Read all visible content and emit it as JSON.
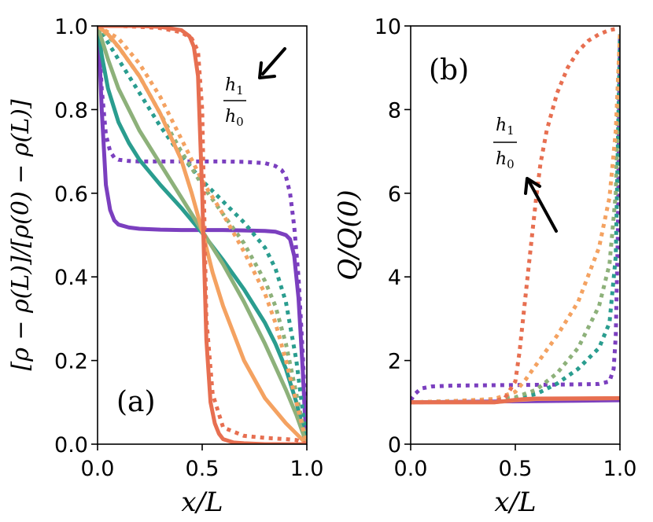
{
  "chart_data": [
    {
      "id": "a",
      "type": "line",
      "panel_label": "(a)",
      "xlabel": "x/L",
      "ylabel": "[ρ − ρ(L)]/[ρ(0) − ρ(L)]",
      "xlim": [
        0,
        1
      ],
      "ylim": [
        0,
        1
      ],
      "xticks": [
        "0.0",
        "0.5",
        "1.0"
      ],
      "yticks": [
        "0.0",
        "0.2",
        "0.4",
        "0.6",
        "0.8",
        "1.0"
      ],
      "annotation": {
        "numerator": "h",
        "numerator_sub": "1",
        "denominator": "h",
        "denominator_sub": "0",
        "arrow_direction": "down-left"
      },
      "series": [
        {
          "name": "purple solid",
          "style": "solid",
          "color": "#7b3fbf",
          "x": [
            0,
            0.01,
            0.02,
            0.04,
            0.06,
            0.08,
            0.1,
            0.15,
            0.2,
            0.3,
            0.4,
            0.5,
            0.6,
            0.7,
            0.8,
            0.85,
            0.9,
            0.92,
            0.94,
            0.96,
            0.98,
            0.99,
            1.0
          ],
          "y": [
            1.0,
            0.92,
            0.8,
            0.62,
            0.56,
            0.535,
            0.525,
            0.518,
            0.515,
            0.513,
            0.512,
            0.512,
            0.512,
            0.511,
            0.51,
            0.508,
            0.5,
            0.49,
            0.45,
            0.35,
            0.18,
            0.08,
            0.0
          ]
        },
        {
          "name": "purple dotted",
          "style": "dotted",
          "color": "#7b3fbf",
          "x": [
            0,
            0.01,
            0.02,
            0.04,
            0.06,
            0.08,
            0.1,
            0.15,
            0.2,
            0.3,
            0.4,
            0.5,
            0.6,
            0.7,
            0.8,
            0.85,
            0.88,
            0.9,
            0.92,
            0.94,
            0.96,
            0.98,
            1.0
          ],
          "y": [
            1.0,
            0.93,
            0.85,
            0.74,
            0.7,
            0.685,
            0.68,
            0.677,
            0.676,
            0.676,
            0.676,
            0.676,
            0.676,
            0.675,
            0.672,
            0.665,
            0.655,
            0.64,
            0.6,
            0.52,
            0.4,
            0.22,
            0.0
          ]
        },
        {
          "name": "teal solid",
          "style": "solid",
          "color": "#2a9d8f",
          "x": [
            0,
            0.02,
            0.05,
            0.1,
            0.15,
            0.2,
            0.3,
            0.4,
            0.5,
            0.6,
            0.7,
            0.8,
            0.85,
            0.9,
            0.95,
            0.98,
            1.0
          ],
          "y": [
            1.0,
            0.93,
            0.85,
            0.77,
            0.72,
            0.68,
            0.62,
            0.565,
            0.505,
            0.44,
            0.37,
            0.29,
            0.24,
            0.18,
            0.1,
            0.04,
            0.0
          ]
        },
        {
          "name": "teal dotted",
          "style": "dotted",
          "color": "#2a9d8f",
          "x": [
            0,
            0.05,
            0.1,
            0.2,
            0.3,
            0.4,
            0.5,
            0.6,
            0.7,
            0.8,
            0.85,
            0.9,
            0.95,
            0.98,
            1.0
          ],
          "y": [
            1.0,
            0.96,
            0.92,
            0.84,
            0.76,
            0.69,
            0.63,
            0.58,
            0.53,
            0.47,
            0.42,
            0.34,
            0.2,
            0.08,
            0.0
          ]
        },
        {
          "name": "green solid",
          "style": "solid",
          "color": "#8db17a",
          "x": [
            0,
            0.05,
            0.1,
            0.2,
            0.3,
            0.4,
            0.5,
            0.6,
            0.7,
            0.8,
            0.9,
            0.95,
            1.0
          ],
          "y": [
            1.0,
            0.92,
            0.85,
            0.75,
            0.67,
            0.59,
            0.51,
            0.43,
            0.34,
            0.24,
            0.13,
            0.07,
            0.0
          ]
        },
        {
          "name": "green dotted",
          "style": "dotted",
          "color": "#8db17a",
          "x": [
            0,
            0.1,
            0.2,
            0.3,
            0.4,
            0.5,
            0.6,
            0.7,
            0.8,
            0.85,
            0.9,
            0.95,
            1.0
          ],
          "y": [
            1.0,
            0.95,
            0.88,
            0.79,
            0.7,
            0.62,
            0.55,
            0.48,
            0.39,
            0.33,
            0.24,
            0.12,
            0.0
          ]
        },
        {
          "name": "orange solid",
          "style": "solid",
          "color": "#f4a261",
          "x": [
            0,
            0.05,
            0.1,
            0.2,
            0.3,
            0.4,
            0.45,
            0.5,
            0.55,
            0.6,
            0.7,
            0.8,
            0.9,
            1.0
          ],
          "y": [
            1.0,
            0.98,
            0.95,
            0.88,
            0.79,
            0.68,
            0.6,
            0.51,
            0.41,
            0.33,
            0.2,
            0.11,
            0.05,
            0.0
          ]
        },
        {
          "name": "orange dotted",
          "style": "dotted",
          "color": "#f4a261",
          "x": [
            0,
            0.1,
            0.2,
            0.3,
            0.4,
            0.5,
            0.6,
            0.7,
            0.8,
            0.85,
            0.9,
            0.95,
            1.0
          ],
          "y": [
            1.0,
            0.97,
            0.91,
            0.83,
            0.73,
            0.63,
            0.55,
            0.46,
            0.36,
            0.29,
            0.2,
            0.1,
            0.0
          ]
        },
        {
          "name": "red solid",
          "style": "solid",
          "color": "#e76f51",
          "x": [
            0,
            0.1,
            0.2,
            0.3,
            0.4,
            0.44,
            0.46,
            0.48,
            0.5,
            0.52,
            0.54,
            0.56,
            0.58,
            0.6,
            0.65,
            0.7,
            0.8,
            1.0
          ],
          "y": [
            1.0,
            1.0,
            1.0,
            0.998,
            0.99,
            0.975,
            0.95,
            0.88,
            0.6,
            0.25,
            0.1,
            0.05,
            0.025,
            0.012,
            0.004,
            0.002,
            0.0,
            0.0
          ]
        },
        {
          "name": "red dotted",
          "style": "dotted",
          "color": "#e76f51",
          "x": [
            0,
            0.1,
            0.2,
            0.3,
            0.4,
            0.45,
            0.48,
            0.5,
            0.52,
            0.55,
            0.6,
            0.7,
            0.8,
            0.9,
            0.95,
            1.0
          ],
          "y": [
            1.0,
            1.0,
            0.998,
            0.995,
            0.985,
            0.97,
            0.94,
            0.8,
            0.3,
            0.12,
            0.04,
            0.02,
            0.015,
            0.012,
            0.01,
            0.0
          ]
        }
      ]
    },
    {
      "id": "b",
      "type": "line",
      "panel_label": "(b)",
      "xlabel": "x/L",
      "ylabel": "Q/Q(0)",
      "xlim": [
        0,
        1
      ],
      "ylim": [
        0,
        10
      ],
      "xticks": [
        "0.0",
        "0.5",
        "1.0"
      ],
      "yticks": [
        "0",
        "2",
        "4",
        "6",
        "8",
        "10"
      ],
      "annotation": {
        "numerator": "h",
        "numerator_sub": "1",
        "denominator": "h",
        "denominator_sub": "0",
        "arrow_direction": "up-left"
      },
      "series": [
        {
          "name": "purple solid",
          "style": "solid",
          "color": "#7b3fbf",
          "x": [
            0,
            0.2,
            0.4,
            0.6,
            0.8,
            1.0
          ],
          "y": [
            1.0,
            1.01,
            1.02,
            1.03,
            1.04,
            1.05
          ]
        },
        {
          "name": "purple dotted",
          "style": "dotted",
          "color": "#7b3fbf",
          "x": [
            0,
            0.02,
            0.05,
            0.1,
            0.2,
            0.4,
            0.6,
            0.8,
            0.9,
            0.95,
            0.97,
            0.98,
            0.99,
            1.0
          ],
          "y": [
            1.05,
            1.2,
            1.33,
            1.38,
            1.4,
            1.41,
            1.42,
            1.43,
            1.44,
            1.5,
            1.8,
            2.6,
            5.0,
            9.8
          ]
        },
        {
          "name": "teal dotted",
          "style": "dotted",
          "color": "#2a9d8f",
          "x": [
            0,
            0.2,
            0.4,
            0.5,
            0.6,
            0.7,
            0.8,
            0.9,
            0.95,
            0.98,
            1.0
          ],
          "y": [
            1.0,
            1.03,
            1.06,
            1.1,
            1.2,
            1.45,
            1.8,
            2.3,
            2.9,
            4.5,
            9.8
          ]
        },
        {
          "name": "green dotted",
          "style": "dotted",
          "color": "#8db17a",
          "x": [
            0,
            0.2,
            0.4,
            0.5,
            0.6,
            0.7,
            0.8,
            0.9,
            0.95,
            0.98,
            1.0
          ],
          "y": [
            1.0,
            1.03,
            1.07,
            1.12,
            1.3,
            1.7,
            2.3,
            3.3,
            4.3,
            6.0,
            9.8
          ]
        },
        {
          "name": "orange dotted",
          "style": "dotted",
          "color": "#f4a261",
          "x": [
            0,
            0.2,
            0.4,
            0.5,
            0.55,
            0.6,
            0.7,
            0.8,
            0.9,
            0.95,
            0.98,
            1.0
          ],
          "y": [
            1.0,
            1.03,
            1.08,
            1.25,
            1.55,
            1.9,
            2.6,
            3.4,
            4.7,
            5.9,
            7.5,
            9.8
          ]
        },
        {
          "name": "red dotted",
          "style": "dotted",
          "color": "#e76f51",
          "x": [
            0,
            0.2,
            0.4,
            0.45,
            0.5,
            0.52,
            0.55,
            0.58,
            0.6,
            0.62,
            0.65,
            0.7,
            0.75,
            0.8,
            0.85,
            0.9,
            0.95,
            1.0
          ],
          "y": [
            1.0,
            1.01,
            1.03,
            1.1,
            1.5,
            2.2,
            3.6,
            5.0,
            5.9,
            6.7,
            7.5,
            8.4,
            9.0,
            9.4,
            9.65,
            9.8,
            9.9,
            9.95
          ]
        },
        {
          "name": "orange solid",
          "style": "solid",
          "color": "#f4a261",
          "x": [
            0,
            0.4,
            0.5,
            0.6,
            1.0
          ],
          "y": [
            1.0,
            1.0,
            1.05,
            1.08,
            1.1
          ]
        },
        {
          "name": "red solid",
          "style": "solid",
          "color": "#e76f51",
          "x": [
            0,
            0.4,
            0.5,
            0.55,
            0.6,
            1.0
          ],
          "y": [
            1.0,
            1.0,
            1.06,
            1.08,
            1.09,
            1.1
          ]
        }
      ]
    }
  ]
}
